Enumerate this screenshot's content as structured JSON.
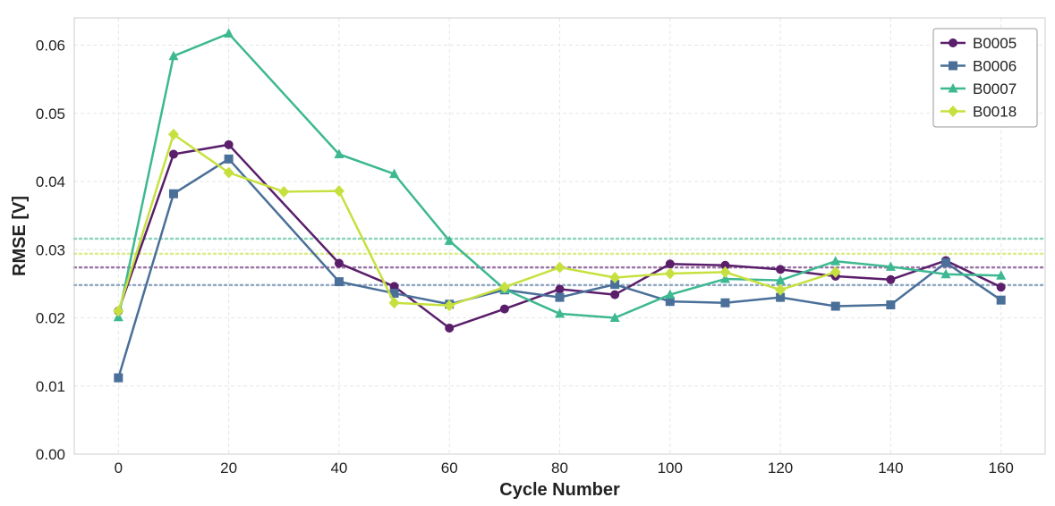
{
  "chart_data": {
    "type": "line",
    "title": "",
    "xlabel": "Cycle Number",
    "ylabel": "RMSE [V]",
    "xlim": [
      -8,
      168
    ],
    "ylim": [
      0,
      0.064
    ],
    "xticks": [
      0,
      20,
      40,
      60,
      80,
      100,
      120,
      140,
      160
    ],
    "yticks": [
      0.0,
      0.01,
      0.02,
      0.03,
      0.04,
      0.05,
      0.06
    ],
    "grid": true,
    "legend_position": "top-right",
    "series": [
      {
        "name": "B0005",
        "color": "#5a1e6b",
        "marker": "circle",
        "x": [
          0,
          10,
          20,
          40,
          50,
          60,
          70,
          80,
          90,
          100,
          110,
          120,
          130,
          140,
          150,
          160
        ],
        "y": [
          0.021,
          0.044,
          0.0454,
          0.028,
          0.0246,
          0.0185,
          0.0213,
          0.0242,
          0.0234,
          0.0279,
          0.0277,
          0.0271,
          0.0261,
          0.0256,
          0.0284,
          0.0245
        ],
        "mean": 0.0274
      },
      {
        "name": "B0006",
        "color": "#4a6f98",
        "marker": "square",
        "x": [
          0,
          10,
          20,
          40,
          50,
          60,
          70,
          80,
          90,
          100,
          110,
          120,
          130,
          140,
          150,
          160
        ],
        "y": [
          0.0112,
          0.0382,
          0.0433,
          0.0253,
          0.0236,
          0.022,
          0.0241,
          0.023,
          0.0249,
          0.0224,
          0.0222,
          0.023,
          0.0217,
          0.0219,
          0.0281,
          0.0226
        ],
        "mean": 0.0248
      },
      {
        "name": "B0007",
        "color": "#3db891",
        "marker": "triangle",
        "x": [
          0,
          10,
          20,
          40,
          50,
          60,
          70,
          80,
          90,
          100,
          110,
          120,
          130,
          140,
          150,
          160
        ],
        "y": [
          0.0201,
          0.0584,
          0.0617,
          0.044,
          0.0411,
          0.0313,
          0.0242,
          0.0206,
          0.02,
          0.0234,
          0.0257,
          0.0255,
          0.0283,
          0.0275,
          0.0264,
          0.0262
        ],
        "mean": 0.0316
      },
      {
        "name": "B0018",
        "color": "#c6e13f",
        "marker": "diamond",
        "x": [
          0,
          10,
          20,
          30,
          40,
          50,
          60,
          70,
          80,
          90,
          100,
          110,
          120,
          130
        ],
        "y": [
          0.021,
          0.0469,
          0.0413,
          0.0385,
          0.0386,
          0.0222,
          0.0218,
          0.0245,
          0.0274,
          0.0259,
          0.0265,
          0.0267,
          0.0241,
          0.0267
        ],
        "mean": 0.0294
      }
    ]
  }
}
